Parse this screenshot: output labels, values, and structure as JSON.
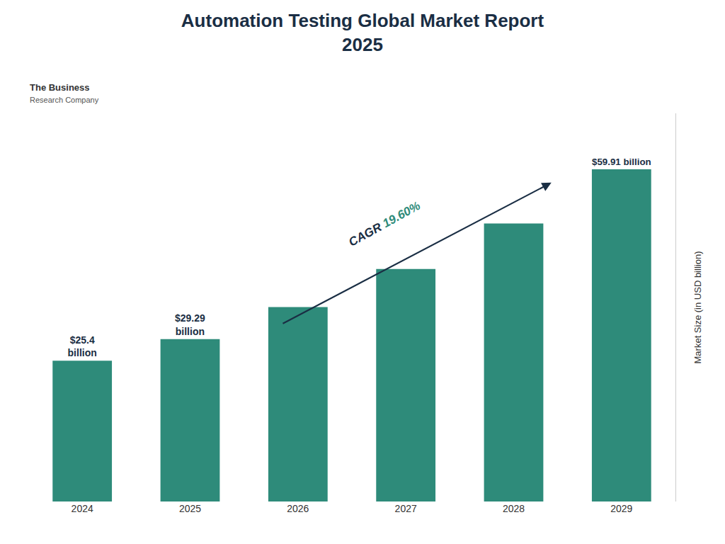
{
  "chart_data": {
    "type": "bar",
    "title": "Automation Testing Global Market Report\n2025",
    "categories": [
      "2024",
      "2025",
      "2026",
      "2027",
      "2028",
      "2029"
    ],
    "values": [
      25.4,
      29.29,
      35.05,
      41.93,
      50.15,
      59.91
    ],
    "color": "#2e8b7a",
    "ylabel": "Market Size (in USD billion)",
    "ylim": [
      0,
      70
    ],
    "grid": false,
    "tick_labels": "x",
    "data_labels": true,
    "value_labels": [
      "$25.4\nbillion",
      "$29.29\nbillion",
      null,
      null,
      null,
      "$59.91 billion"
    ],
    "annotations": [
      "CAGR 19.60%",
      "The Business",
      "Research Company"
    ]
  }
}
